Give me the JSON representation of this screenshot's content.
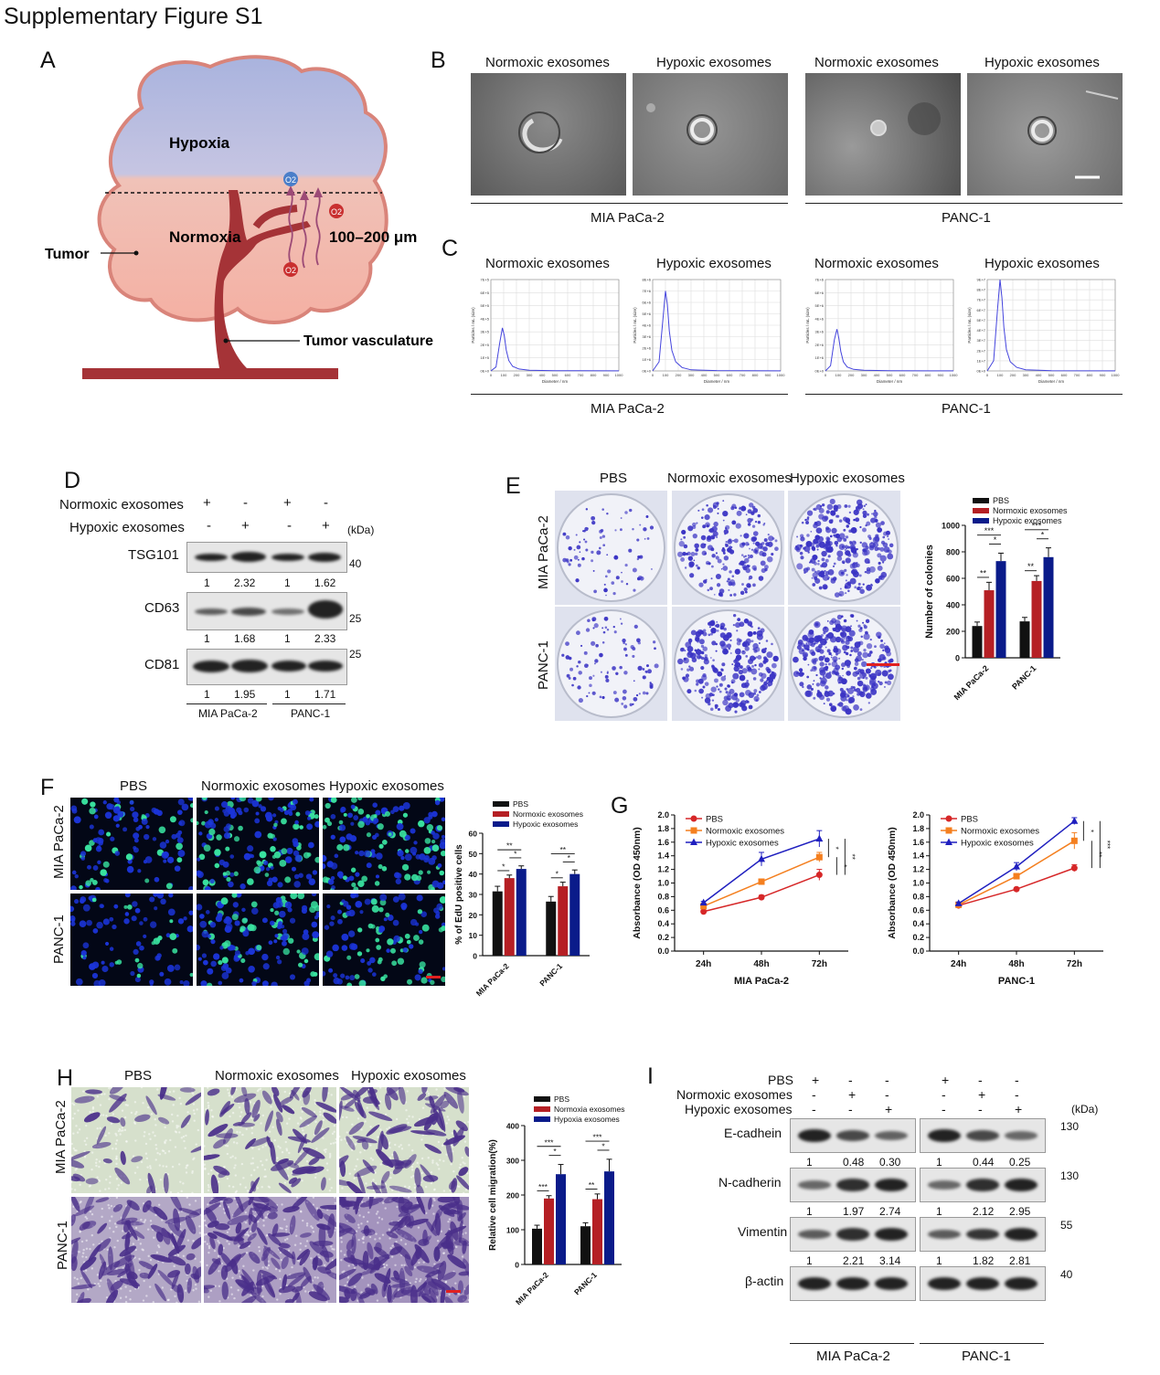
{
  "figure_title": "Supplementary Figure S1",
  "panels": {
    "A": {
      "letter": "A",
      "hypoxia": "Hypoxia",
      "normoxia": "Normoxia",
      "distance": "100–200 μm",
      "tumor": "Tumor",
      "vasculature": "Tumor vasculature",
      "o2": "O2",
      "colors": {
        "hypoxia_fill": "#aab4dd",
        "normoxia_fill": "#f3b9ad",
        "outline": "#d98278",
        "vessel": "#a53337",
        "o2_blue": "#4a7ec9",
        "o2_red": "#c92f2f",
        "arrow": "#9c4a76"
      }
    },
    "B": {
      "letter": "B",
      "labels": [
        "Normoxic exosomes",
        "Hypoxic exosomes",
        "Normoxic exosomes",
        "Hypoxic exosomes"
      ],
      "groups": [
        "MIA PaCa-2",
        "PANC-1"
      ]
    },
    "C": {
      "letter": "C",
      "labels": [
        "Normoxic exosomes",
        "Hypoxic exosomes",
        "Normoxic exosomes",
        "Hypoxic exosomes"
      ],
      "groups": [
        "MIA PaCa-2",
        "PANC-1"
      ]
    },
    "D": {
      "letter": "D",
      "row_labels": [
        "Normoxic exosomes",
        "Hypoxic exosomes"
      ],
      "normoxic_signs": [
        "+",
        "-",
        "+",
        "-"
      ],
      "hypoxic_signs": [
        "-",
        "+",
        "-",
        "+"
      ],
      "kda": "(kDa)",
      "blots": [
        {
          "name": "TSG101",
          "marker": "40",
          "quant": [
            "1",
            "2.32",
            "1",
            "1.62"
          ]
        },
        {
          "name": "CD63",
          "marker": "25",
          "quant": [
            "1",
            "1.68",
            "1",
            "2.33"
          ]
        },
        {
          "name": "CD81",
          "marker": "25",
          "quant": [
            "1",
            "1.95",
            "1",
            "1.71"
          ]
        }
      ],
      "groups": [
        "MIA PaCa-2",
        "PANC-1"
      ]
    },
    "E": {
      "letter": "E",
      "col_labels": [
        "PBS",
        "Normoxic exosomes",
        "Hypoxic exosomes"
      ],
      "row_labels": [
        "MIA PaCa-2",
        "PANC-1"
      ]
    },
    "F": {
      "letter": "F",
      "col_labels": [
        "PBS",
        "Normoxic exosomes",
        "Hypoxic exosomes"
      ],
      "row_labels": [
        "MIA PaCa-2",
        "PANC-1"
      ]
    },
    "G": {
      "letter": "G"
    },
    "H": {
      "letter": "H",
      "col_labels": [
        "PBS",
        "Normoxic exosomes",
        "Hypoxic exosomes"
      ],
      "row_labels": [
        "MIA PaCa-2",
        "PANC-1"
      ]
    },
    "I": {
      "letter": "I",
      "row_labels": [
        "PBS",
        "Normoxic exosomes",
        "Hypoxic exosomes"
      ],
      "pbs_signs": [
        "+",
        "-",
        "-",
        "+",
        "-",
        "-"
      ],
      "normoxic_signs": [
        "-",
        "+",
        "-",
        "-",
        "+",
        "-"
      ],
      "hypoxic_signs": [
        "-",
        "-",
        "+",
        "-",
        "-",
        "+"
      ],
      "kda": "(kDa)",
      "blots": [
        {
          "name": "E-cadhein",
          "marker": "130",
          "quant": [
            "1",
            "0.48",
            "0.30",
            "1",
            "0.44",
            "0.25"
          ]
        },
        {
          "name": "N-cadherin",
          "marker": "130",
          "quant": [
            "1",
            "1.97",
            "2.74",
            "1",
            "2.12",
            "2.95"
          ]
        },
        {
          "name": "Vimentin",
          "marker": "55",
          "quant": [
            "1",
            "2.21",
            "3.14",
            "1",
            "1.82",
            "2.81"
          ]
        },
        {
          "name": "β-actin",
          "marker": "40",
          "quant": []
        }
      ],
      "groups": [
        "MIA PaCa-2",
        "PANC-1"
      ]
    }
  },
  "chart_data": [
    {
      "id": "C-1",
      "type": "line",
      "xlabel": "Diameter / nm",
      "ylabel": "Particles / mL (size)",
      "xlim": [
        0,
        1000
      ],
      "xticks": [
        0,
        100,
        200,
        300,
        400,
        500,
        600,
        700,
        800,
        900,
        1000
      ],
      "yticks": [
        "0E+0",
        "1E+5",
        "2E+5",
        "3E+5",
        "4E+5",
        "5E+5",
        "6E+5",
        "7E+5"
      ],
      "ymax": 7,
      "x": [
        0,
        40,
        70,
        90,
        105,
        120,
        140,
        170,
        220,
        300,
        500,
        1000
      ],
      "y": [
        0,
        0.3,
        2.2,
        3.3,
        2.7,
        1.6,
        0.8,
        0.35,
        0.15,
        0.05,
        0.02,
        0.01
      ]
    },
    {
      "id": "C-2",
      "type": "line",
      "xlabel": "Diameter / nm",
      "ylabel": "Particles / mL (size)",
      "xlim": [
        0,
        1000
      ],
      "xticks": [
        0,
        100,
        200,
        300,
        400,
        500,
        600,
        700,
        800,
        900,
        1000
      ],
      "yticks": [
        "0E+0",
        "1E+6",
        "2E+6",
        "3E+6",
        "4E+6",
        "5E+6",
        "6E+6",
        "7E+6",
        "8E+6"
      ],
      "ymax": 8,
      "x": [
        0,
        50,
        80,
        100,
        115,
        130,
        150,
        180,
        230,
        300,
        500,
        1000
      ],
      "y": [
        0,
        0.8,
        4.5,
        7.0,
        5.8,
        3.5,
        1.8,
        0.8,
        0.3,
        0.1,
        0.03,
        0.01
      ]
    },
    {
      "id": "C-3",
      "type": "line",
      "xlabel": "Diameter / nm",
      "ylabel": "Particles / mL (size)",
      "xlim": [
        0,
        1000
      ],
      "xticks": [
        0,
        100,
        200,
        300,
        400,
        500,
        600,
        700,
        800,
        900,
        1000
      ],
      "yticks": [
        "0E+0",
        "1E+6",
        "2E+6",
        "3E+6",
        "4E+6",
        "5E+6",
        "6E+6",
        "7E+6"
      ],
      "ymax": 7,
      "x": [
        0,
        40,
        70,
        90,
        105,
        120,
        140,
        170,
        220,
        300,
        500,
        1000
      ],
      "y": [
        0,
        0.4,
        2.4,
        3.2,
        2.5,
        1.5,
        0.7,
        0.3,
        0.12,
        0.05,
        0.02,
        0.01
      ]
    },
    {
      "id": "C-4",
      "type": "line",
      "xlabel": "Diameter / nm",
      "ylabel": "Particles / mL (size)",
      "xlim": [
        0,
        1000
      ],
      "xticks": [
        0,
        100,
        200,
        300,
        400,
        500,
        600,
        700,
        800,
        900,
        1000
      ],
      "yticks": [
        "0E+0",
        "1E+7",
        "2E+7",
        "3E+7",
        "4E+7",
        "5E+7",
        "6E+7",
        "7E+7",
        "8E+7",
        "9E+7"
      ],
      "ymax": 9,
      "x": [
        0,
        50,
        80,
        100,
        115,
        130,
        150,
        180,
        230,
        300,
        500,
        1000
      ],
      "y": [
        0,
        1.0,
        6.0,
        9.0,
        7.2,
        4.3,
        2.1,
        0.9,
        0.35,
        0.12,
        0.03,
        0.01
      ]
    },
    {
      "id": "E",
      "type": "bar",
      "ylabel": "Number of colonies",
      "ylim": [
        0,
        1000
      ],
      "yticks": [
        0,
        200,
        400,
        600,
        800,
        1000
      ],
      "categories": [
        "MIA PaCa-2",
        "PANC-1"
      ],
      "series": [
        {
          "name": "PBS",
          "color": "#111111",
          "values": [
            240,
            275
          ],
          "errors": [
            30,
            30
          ]
        },
        {
          "name": "Normoxic exosomes",
          "color": "#b51f24",
          "values": [
            510,
            580
          ],
          "errors": [
            60,
            40
          ]
        },
        {
          "name": "Hypoxic exosomes",
          "color": "#0a1b8a",
          "values": [
            730,
            760
          ],
          "errors": [
            60,
            70
          ]
        }
      ],
      "significance": [
        {
          "cat": 0,
          "from": 0,
          "to": 1,
          "label": "**"
        },
        {
          "cat": 0,
          "from": 1,
          "to": 2,
          "label": "*"
        },
        {
          "cat": 0,
          "from": 0,
          "to": 2,
          "label": "***"
        },
        {
          "cat": 1,
          "from": 0,
          "to": 1,
          "label": "**"
        },
        {
          "cat": 1,
          "from": 1,
          "to": 2,
          "label": "*"
        },
        {
          "cat": 1,
          "from": 0,
          "to": 2,
          "label": "***"
        }
      ]
    },
    {
      "id": "F",
      "type": "bar",
      "ylabel": "% of EdU positive cells",
      "ylim": [
        0,
        60
      ],
      "yticks": [
        0,
        10,
        20,
        30,
        40,
        50,
        60
      ],
      "categories": [
        "MIA PaCa-2",
        "PANC-1"
      ],
      "series": [
        {
          "name": "PBS",
          "color": "#111111",
          "values": [
            31.5,
            26.5
          ],
          "errors": [
            2.5,
            2.5
          ]
        },
        {
          "name": "Normoxic exosomes",
          "color": "#b51f24",
          "values": [
            38,
            34
          ],
          "errors": [
            1.5,
            2
          ]
        },
        {
          "name": "Hypoxic exosomes",
          "color": "#0a1b8a",
          "values": [
            42.5,
            40
          ],
          "errors": [
            1.5,
            2
          ]
        }
      ],
      "significance": [
        {
          "cat": 0,
          "from": 0,
          "to": 1,
          "label": "*"
        },
        {
          "cat": 0,
          "from": 1,
          "to": 2,
          "label": "*"
        },
        {
          "cat": 0,
          "from": 0,
          "to": 2,
          "label": "**"
        },
        {
          "cat": 1,
          "from": 0,
          "to": 1,
          "label": "*"
        },
        {
          "cat": 1,
          "from": 1,
          "to": 2,
          "label": "*"
        },
        {
          "cat": 1,
          "from": 0,
          "to": 2,
          "label": "**"
        }
      ]
    },
    {
      "id": "G-1",
      "type": "line",
      "xlabel": "MIA PaCa-2",
      "ylabel": "Absorbance (OD 450nm)",
      "ylim": [
        0,
        2.0
      ],
      "yticks": [
        "0.0",
        "0.2",
        "0.4",
        "0.6",
        "0.8",
        "1.0",
        "1.2",
        "1.4",
        "1.6",
        "1.8",
        "2.0"
      ],
      "categories": [
        "24h",
        "48h",
        "72h"
      ],
      "series": [
        {
          "name": "PBS",
          "color": "#d62728",
          "marker": "circle",
          "values": [
            0.58,
            0.79,
            1.12
          ],
          "errors": [
            0.02,
            0.03,
            0.08
          ]
        },
        {
          "name": "Normoxic exosomes",
          "color": "#f47f1f",
          "marker": "square",
          "values": [
            0.66,
            1.02,
            1.38
          ],
          "errors": [
            0.02,
            0.03,
            0.07
          ]
        },
        {
          "name": "Hypoxic exosomes",
          "color": "#1f1fbf",
          "marker": "triangle",
          "values": [
            0.71,
            1.35,
            1.65
          ],
          "errors": [
            0.02,
            0.1,
            0.12
          ]
        }
      ],
      "significance": [
        "*",
        "*",
        "**"
      ]
    },
    {
      "id": "G-2",
      "type": "line",
      "xlabel": "PANC-1",
      "ylabel": "Absorbance (OD 450nm)",
      "ylim": [
        0,
        2.0
      ],
      "yticks": [
        "0.0",
        "0.2",
        "0.4",
        "0.6",
        "0.8",
        "1.0",
        "1.2",
        "1.4",
        "1.6",
        "1.8",
        "2.0"
      ],
      "categories": [
        "24h",
        "48h",
        "72h"
      ],
      "series": [
        {
          "name": "PBS",
          "color": "#d62728",
          "marker": "circle",
          "values": [
            0.67,
            0.91,
            1.22
          ],
          "errors": [
            0.02,
            0.02,
            0.05
          ]
        },
        {
          "name": "Normoxic exosomes",
          "color": "#f47f1f",
          "marker": "square",
          "values": [
            0.68,
            1.1,
            1.62
          ],
          "errors": [
            0.02,
            0.04,
            0.12
          ]
        },
        {
          "name": "Hypoxic exosomes",
          "color": "#1f1fbf",
          "marker": "triangle",
          "values": [
            0.7,
            1.24,
            1.91
          ],
          "errors": [
            0.02,
            0.06,
            0.05
          ]
        }
      ],
      "significance": [
        "*",
        "**",
        "***"
      ]
    },
    {
      "id": "H",
      "type": "bar",
      "ylabel": "Relative cell migration(%)",
      "ylim": [
        0,
        400
      ],
      "yticks": [
        0,
        100,
        200,
        300,
        400
      ],
      "categories": [
        "MIA PaCa-2",
        "PANC-1"
      ],
      "series": [
        {
          "name": "PBS",
          "color": "#111111",
          "values": [
            103,
            110
          ],
          "errors": [
            10,
            10
          ]
        },
        {
          "name": "Normoxia exosomes",
          "color": "#b51f24",
          "values": [
            190,
            188
          ],
          "errors": [
            8,
            15
          ]
        },
        {
          "name": "Hypoxia exosomes",
          "color": "#0a1b8a",
          "values": [
            260,
            268
          ],
          "errors": [
            28,
            35
          ]
        }
      ],
      "significance": [
        {
          "cat": 0,
          "from": 0,
          "to": 1,
          "label": "***"
        },
        {
          "cat": 0,
          "from": 1,
          "to": 2,
          "label": "*"
        },
        {
          "cat": 0,
          "from": 0,
          "to": 2,
          "label": "***"
        },
        {
          "cat": 1,
          "from": 0,
          "to": 1,
          "label": "**"
        },
        {
          "cat": 1,
          "from": 1,
          "to": 2,
          "label": "*"
        },
        {
          "cat": 1,
          "from": 0,
          "to": 2,
          "label": "***"
        }
      ]
    }
  ]
}
